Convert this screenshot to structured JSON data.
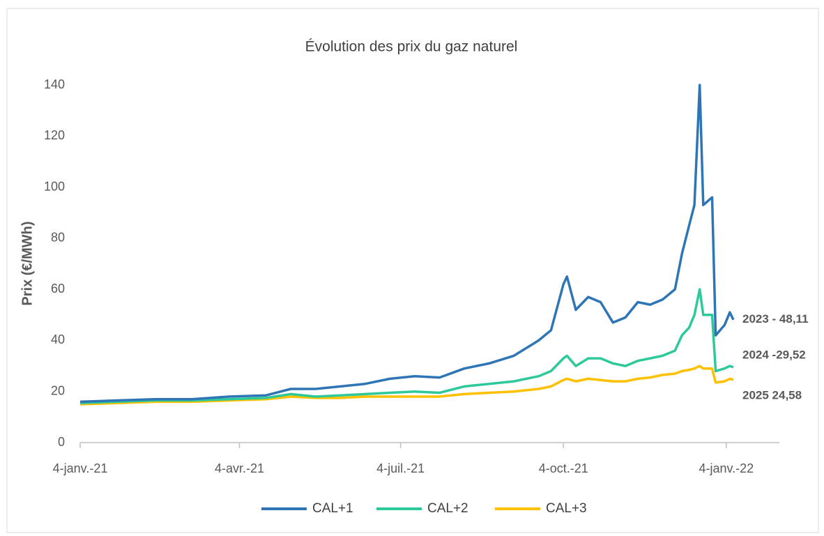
{
  "chart_data": {
    "type": "line",
    "title": "Évolution des prix du gaz naturel",
    "y_label": "Prix (€/MWh)",
    "x": [
      "2021-01-04",
      "2021-01-25",
      "2021-02-15",
      "2021-03-08",
      "2021-03-29",
      "2021-04-19",
      "2021-05-03",
      "2021-05-17",
      "2021-05-31",
      "2021-06-14",
      "2021-06-28",
      "2021-07-12",
      "2021-07-26",
      "2021-08-09",
      "2021-08-23",
      "2021-09-06",
      "2021-09-20",
      "2021-09-27",
      "2021-10-04",
      "2021-10-06",
      "2021-10-11",
      "2021-10-18",
      "2021-10-25",
      "2021-11-01",
      "2021-11-08",
      "2021-11-15",
      "2021-11-22",
      "2021-11-29",
      "2021-12-06",
      "2021-12-10",
      "2021-12-14",
      "2021-12-17",
      "2021-12-20",
      "2021-12-22",
      "2021-12-27",
      "2021-12-29",
      "2022-01-03",
      "2022-01-06",
      "2022-01-08"
    ],
    "series": [
      {
        "name": "CAL+1",
        "color": "#2e75b6",
        "values": [
          16,
          16.5,
          17,
          17,
          18,
          18.5,
          21,
          21,
          22,
          23,
          25,
          26,
          25.5,
          29,
          31,
          34,
          40,
          44,
          62,
          65,
          52,
          57,
          55,
          47,
          49,
          55,
          54,
          56,
          60,
          74,
          85,
          93,
          140,
          93,
          96,
          42,
          46,
          51,
          48.11
        ]
      },
      {
        "name": "CAL+2",
        "color": "#2ec99a",
        "values": [
          15.5,
          16,
          16.5,
          16.5,
          17,
          17.5,
          19,
          18,
          18.5,
          19,
          19.5,
          20,
          19.5,
          22,
          23,
          24,
          26,
          28,
          33,
          34,
          30,
          33,
          33,
          31,
          30,
          32,
          33,
          34,
          36,
          42,
          45,
          50,
          60,
          50,
          50,
          28,
          29,
          30,
          29.52
        ]
      },
      {
        "name": "CAL+3",
        "color": "#ffc000",
        "values": [
          15,
          15.5,
          16,
          16,
          16.5,
          17,
          18,
          17.5,
          17.5,
          18,
          18,
          18,
          18,
          19,
          19.5,
          20,
          21,
          22,
          24.5,
          25,
          24,
          25,
          24.5,
          24,
          24,
          25,
          25.5,
          26.5,
          27,
          28,
          28.5,
          29,
          30,
          29,
          29,
          23.5,
          24,
          25,
          24.58
        ]
      }
    ],
    "annotations": [
      "2023 - 48,11",
      "2024 -29,52",
      "2025 24,58"
    ],
    "xlim": [
      "2021-01-04",
      "2022-02-03"
    ],
    "xticks": [
      {
        "value": "2021-01-04",
        "label": "4-janv.-21"
      },
      {
        "value": "2021-04-04",
        "label": "4-avr.-21"
      },
      {
        "value": "2021-07-04",
        "label": "4-juil.-21"
      },
      {
        "value": "2021-10-04",
        "label": "4-oct.-21"
      },
      {
        "value": "2022-01-04",
        "label": "4-janv.-22"
      }
    ],
    "ylim": [
      0,
      140
    ],
    "yticks": [
      0,
      20,
      40,
      60,
      80,
      100,
      120,
      140
    ],
    "grid": false,
    "legend": "bottom"
  }
}
